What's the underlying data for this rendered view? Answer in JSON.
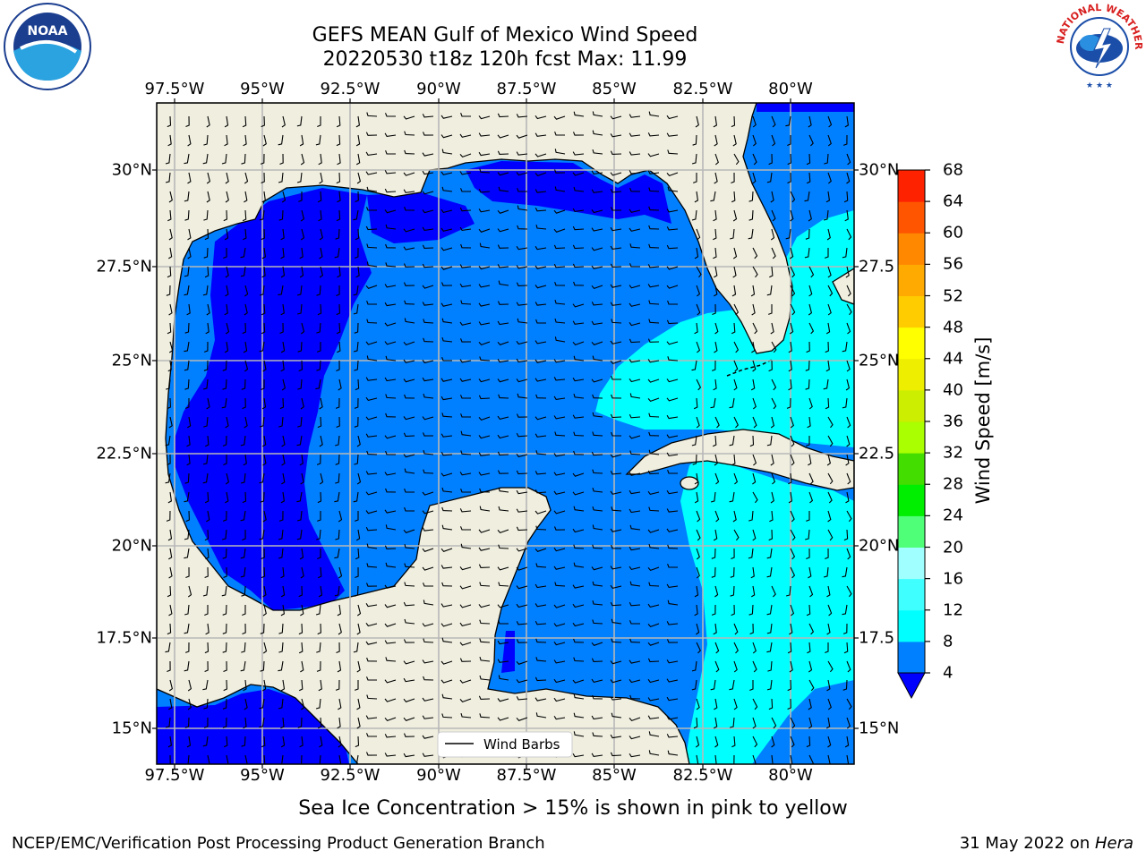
{
  "title_line1": "GEFS MEAN Gulf of Mexico Wind Speed",
  "title_line2": "20220530 t18z 120h fcst   Max: 11.99",
  "lon_labels": [
    "97.5°W",
    "95°W",
    "92.5°W",
    "90°W",
    "87.5°W",
    "85°W",
    "82.5°W",
    "80°W"
  ],
  "lat_labels_left": [
    "30°N",
    "27.5°N",
    "25°N",
    "22.5°N",
    "20°N",
    "17.5°N",
    "15°N"
  ],
  "lat_labels_right": [
    "30°N",
    "27.5",
    "25°N",
    "22.5",
    "20°N",
    "17.5",
    "15°N"
  ],
  "legend_label": "Wind Barbs",
  "colorbar": {
    "title": "Wind Speed [m/s]",
    "ticks": [
      "68",
      "64",
      "60",
      "56",
      "52",
      "48",
      "44",
      "40",
      "36",
      "32",
      "28",
      "24",
      "20",
      "16",
      "12",
      "8",
      "4"
    ],
    "colors": [
      "#0000ff",
      "#0080ff",
      "#00ffff",
      "#40ffff",
      "#a0ffff",
      "#50ff78",
      "#00ee00",
      "#44dd00",
      "#aaff00",
      "#ccee00",
      "#eeee00",
      "#ffff00",
      "#ffcc00",
      "#ffaa00",
      "#ff8800",
      "#ff5500",
      "#ff2200",
      "#ff0000"
    ]
  },
  "map_colors": {
    "land": "#efeedf",
    "wind_4_8": "#0080ff",
    "wind_below_4": "#0000ff",
    "wind_8_12": "#00ffff"
  },
  "caption": "Sea Ice Concentration > 15% is shown in pink to yellow",
  "footer_left": "NCEP/EMC/Verification Post Processing Product Generation Branch",
  "footer_date": "31 May 2022 on ",
  "footer_machine": "Hera",
  "logos": {
    "noaa": "NOAA",
    "nws": "NATIONAL WEATHER SERVICE"
  }
}
